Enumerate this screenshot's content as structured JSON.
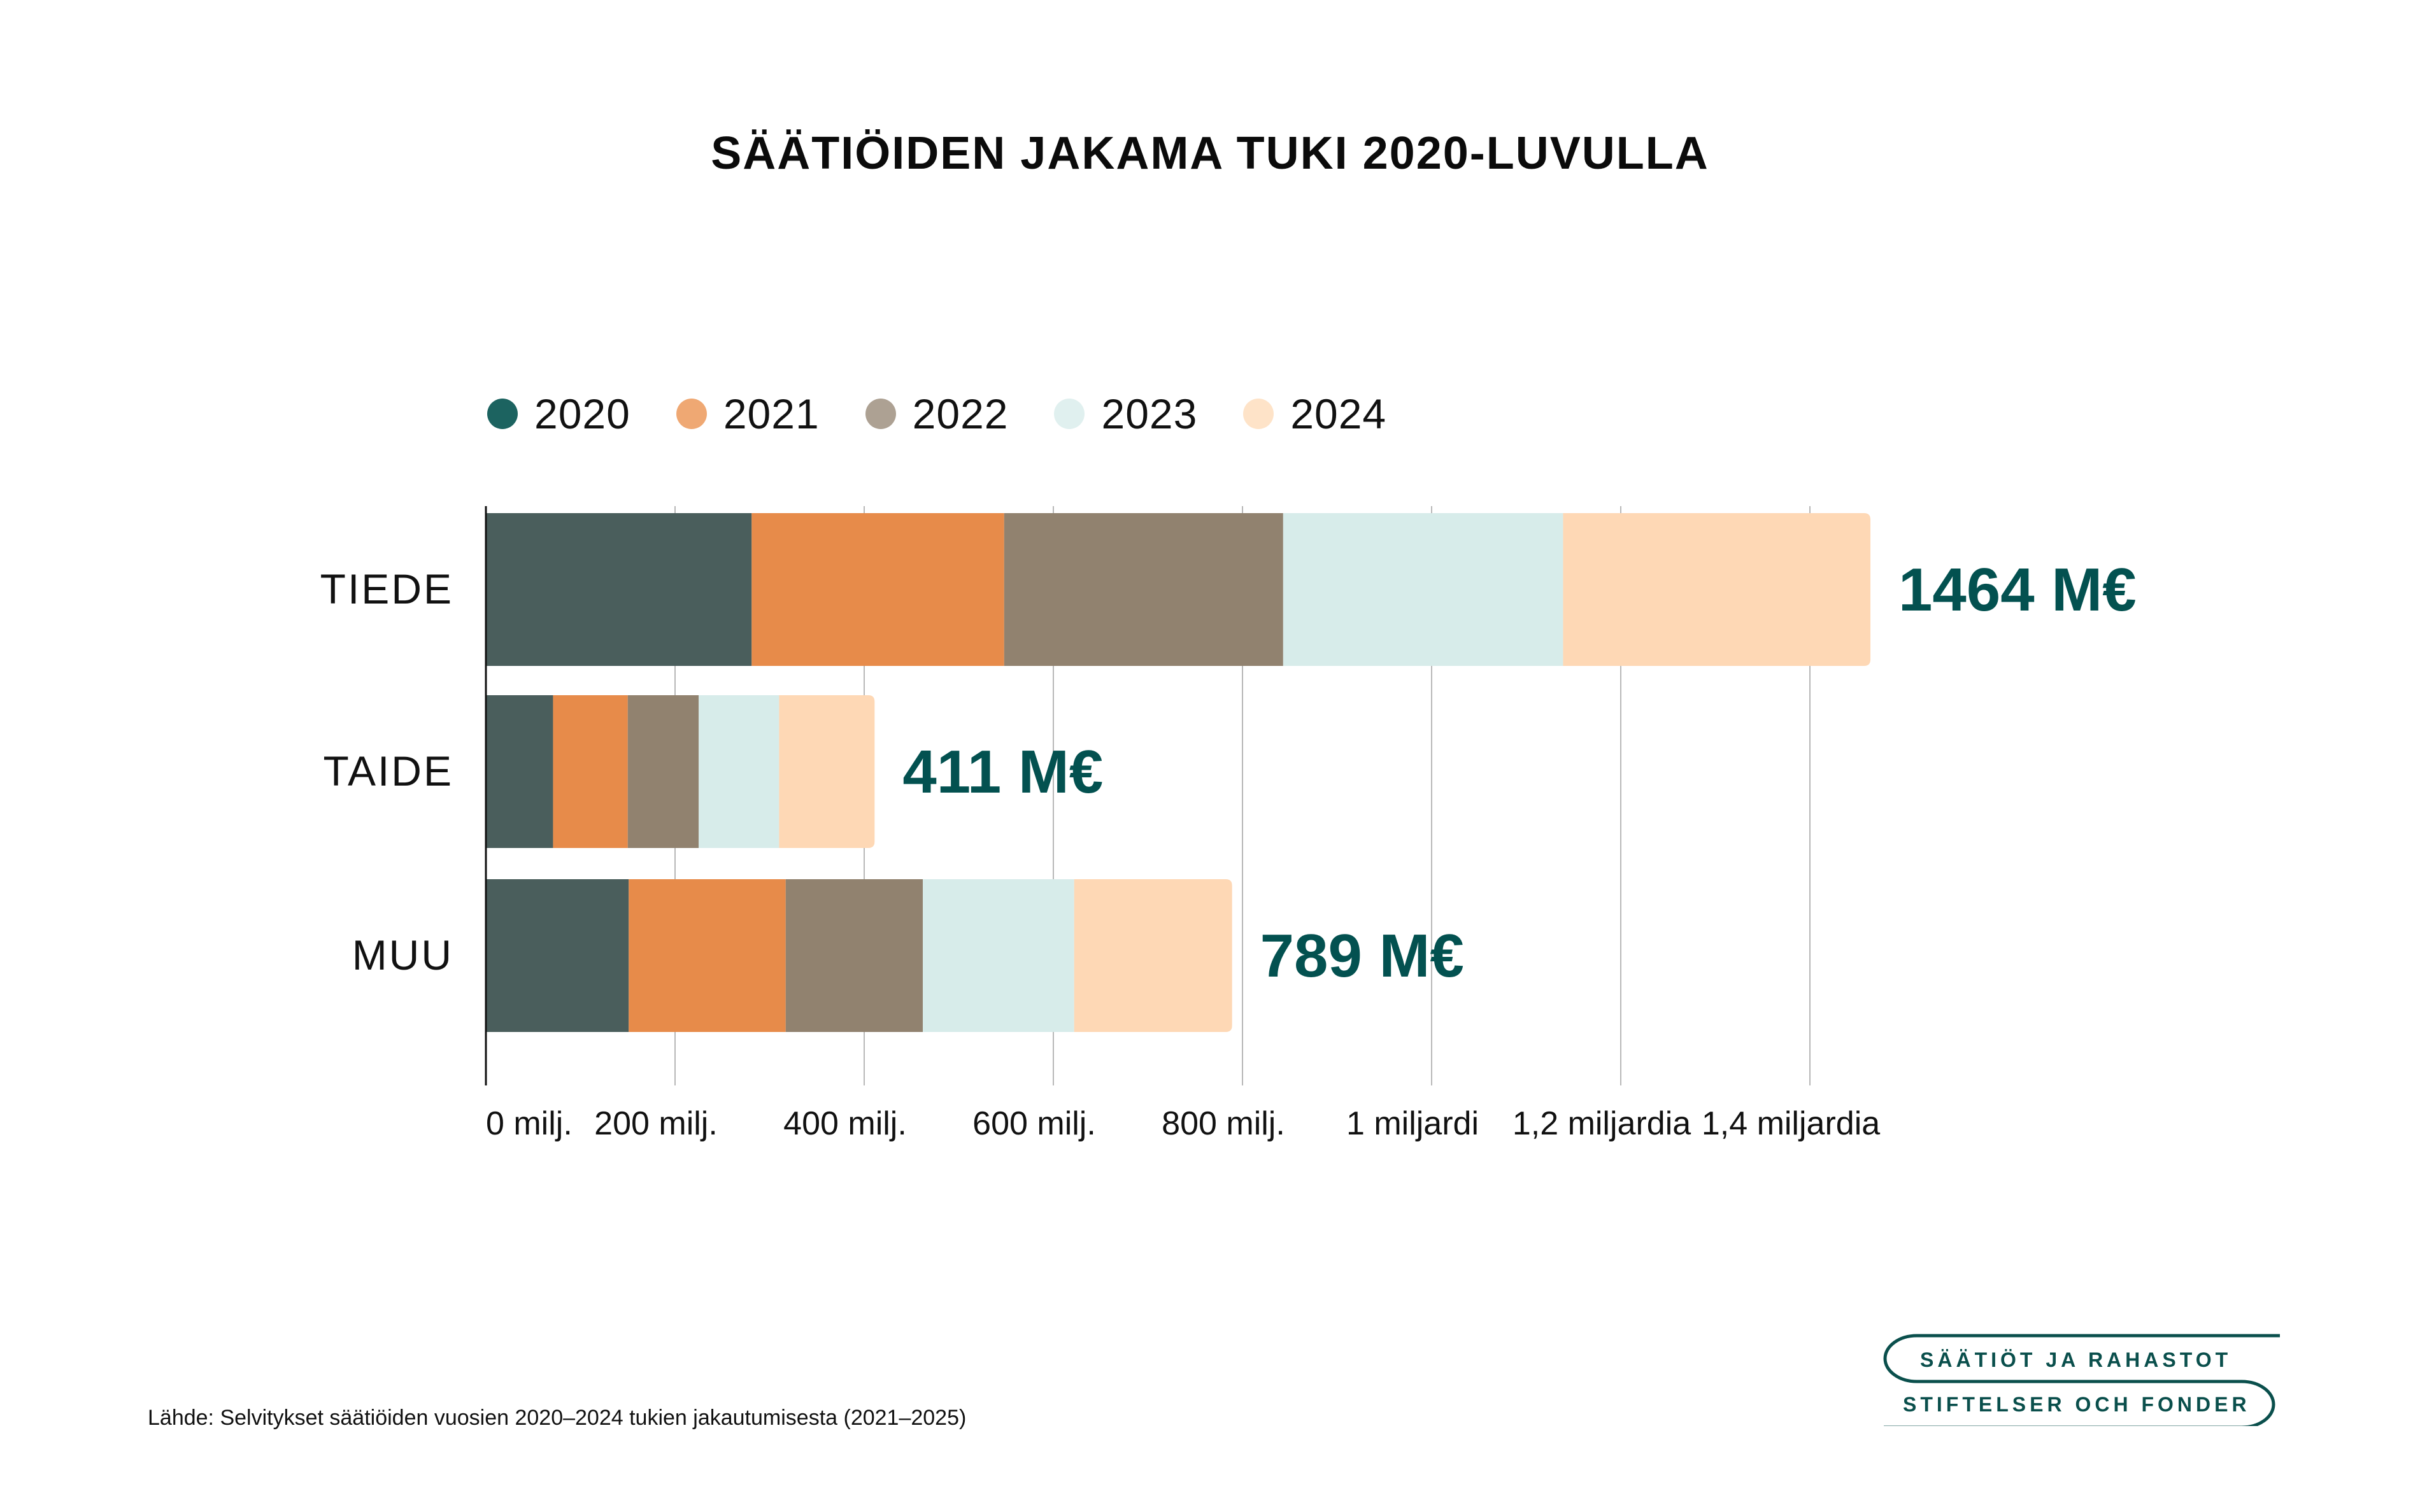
{
  "chart_data": {
    "type": "bar",
    "orientation": "horizontal",
    "stacked": true,
    "title": "SÄÄTIÖIDEN JAKAMA TUKI 2020-LUVULLA",
    "xlabel": "",
    "ylabel": "",
    "categories": [
      "TIEDE",
      "TAIDE",
      "MUU"
    ],
    "series": [
      {
        "name": "2020",
        "color": "#4a5e5c",
        "legend_color": "#1c6360",
        "values": [
          281,
          71,
          151
        ]
      },
      {
        "name": "2021",
        "color": "#e78b4a",
        "legend_color": "#efa873",
        "values": [
          267,
          79,
          166
        ]
      },
      {
        "name": "2022",
        "color": "#91826f",
        "legend_color": "#ada193",
        "values": [
          295,
          75,
          145
        ]
      },
      {
        "name": "2023",
        "color": "#d7ecea",
        "legend_color": "#e0f0ef",
        "values": [
          296,
          85,
          160
        ]
      },
      {
        "name": "2024",
        "color": "#fed8b5",
        "legend_color": "#fee3c8",
        "values": [
          325,
          101,
          167
        ]
      }
    ],
    "totals": [
      {
        "category": "TIEDE",
        "value": 1464,
        "label": "1464 M€"
      },
      {
        "category": "TAIDE",
        "value": 411,
        "label": "411 M€"
      },
      {
        "category": "MUU",
        "value": 789,
        "label": "789 M€"
      }
    ],
    "total_label_color": "#035150",
    "xlim": [
      0,
      1400
    ],
    "xticks": [
      0,
      200,
      400,
      600,
      800,
      1000,
      1200,
      1400
    ],
    "xtick_labels": [
      "0 milj.",
      "200 milj.",
      "400 milj.",
      "600 milj.",
      "800 milj.",
      "1 miljardi",
      "1,2 miljardia",
      "1,4 miljardia"
    ],
    "grid": true,
    "legend_position": "top-left",
    "units": "M€"
  },
  "source": "Lähde: Selvitykset säätiöiden vuosien 2020–2024 tukien jakautumisesta (2021–2025)",
  "logo": {
    "line1": "SÄÄTIÖT JA RAHASTOT",
    "line2": "STIFTELSER OCH FONDER",
    "color": "#0a4f4c"
  }
}
